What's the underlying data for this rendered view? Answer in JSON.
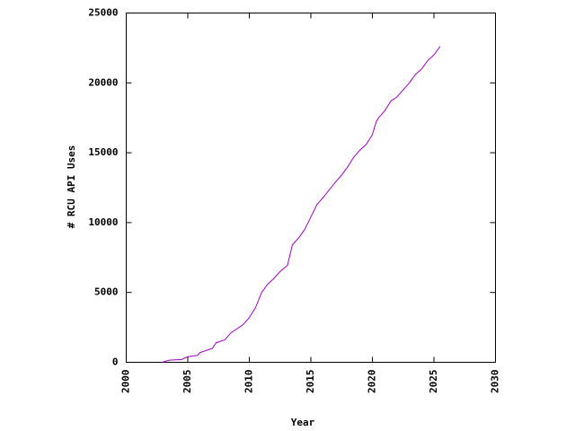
{
  "chart_data": {
    "type": "line",
    "xlabel": "Year",
    "ylabel": "# RCU API Uses",
    "x": [
      2002.9,
      2003.5,
      2004.5,
      2005,
      2005.8,
      2006,
      2007,
      2007.3,
      2008,
      2008.5,
      2009.5,
      2010,
      2010.5,
      2011,
      2011.5,
      2012,
      2012.5,
      2013.1,
      2013.5,
      2014,
      2014.5,
      2015,
      2015.5,
      2016,
      2017,
      2017.5,
      2018,
      2018.5,
      2019,
      2019.5,
      2020,
      2020.3,
      2020.5,
      2021,
      2021.5,
      2022,
      2022.5,
      2023,
      2023.5,
      2024,
      2024.5,
      2025,
      2025.5
    ],
    "series": [
      {
        "name": "# RCU API Uses",
        "color": "#a000c0",
        "values": [
          0,
          150,
          200,
          400,
          500,
          700,
          1000,
          1400,
          1600,
          2100,
          2700,
          3200,
          3900,
          5000,
          5600,
          6000,
          6500,
          6940,
          8400,
          8900,
          9500,
          10400,
          11300,
          11800,
          12900,
          13400,
          14000,
          14700,
          15200,
          15600,
          16300,
          17200,
          17500,
          18000,
          18700,
          19000,
          19500,
          20000,
          20600,
          21000,
          21600,
          22000,
          22600
        ]
      }
    ],
    "xlim": [
      2000,
      2030
    ],
    "xticks": [
      2000,
      2005,
      2010,
      2015,
      2020,
      2025,
      2030
    ],
    "ylim": [
      0,
      25000
    ],
    "yticks": [
      0,
      5000,
      10000,
      15000,
      20000,
      25000
    ],
    "grid": false
  }
}
